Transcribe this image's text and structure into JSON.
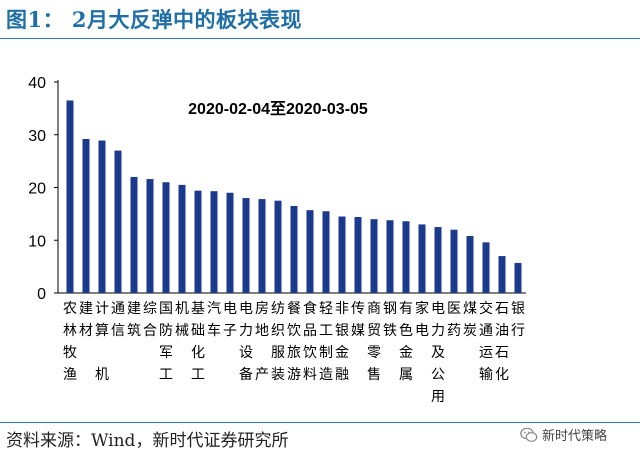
{
  "figure": {
    "title": "图1： 2月大反弹中的板块表现",
    "source": "资料来源：Wind，新时代证券研究所",
    "watermark": "新时代策略",
    "watermark_icon": "wechat-icon"
  },
  "chart_data": {
    "type": "bar",
    "annotation": "2020-02-04至2020-03-05",
    "categories": [
      "农林牧渔",
      "建材",
      "计算机",
      "通信",
      "建筑",
      "综合",
      "国防军工",
      "机械",
      "基础化工",
      "汽车",
      "电子",
      "电力设备",
      "房地产",
      "纺织服装",
      "餐饮旅游",
      "食品饮料",
      "轻工制造",
      "非银金融",
      "传媒",
      "商贸零售",
      "钢铁",
      "有色金属",
      "家电",
      "电力及公用",
      "医药",
      "煤炭",
      "交通运输",
      "石油石化",
      "银行"
    ],
    "values": [
      36.5,
      29.2,
      28.9,
      27.0,
      22.0,
      21.6,
      21.0,
      20.5,
      19.4,
      19.3,
      19.0,
      18.0,
      17.8,
      17.5,
      16.5,
      15.7,
      15.5,
      14.5,
      14.4,
      14.0,
      13.8,
      13.6,
      13.0,
      12.5,
      12.0,
      10.8,
      9.6,
      7.0,
      5.7
    ],
    "ylim": [
      0,
      40
    ],
    "yticks": [
      0,
      10,
      20,
      30,
      40
    ],
    "bar_color": "#1a3a8c",
    "grid": false,
    "legend": "none"
  }
}
